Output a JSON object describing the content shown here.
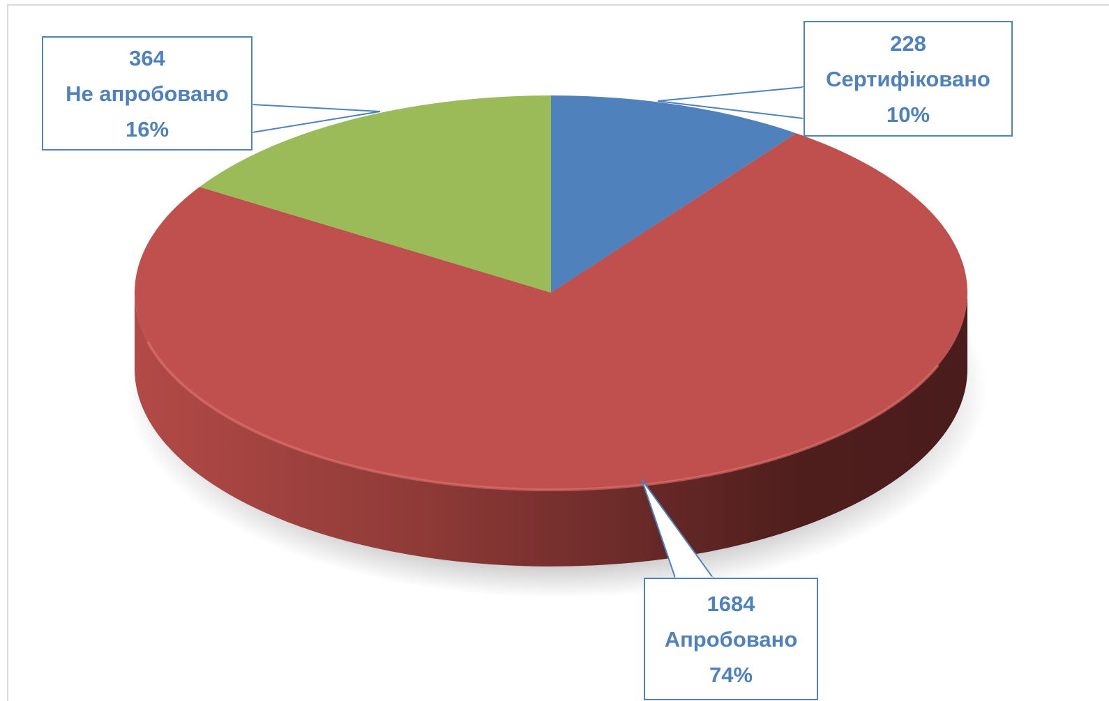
{
  "chart_data": {
    "type": "pie",
    "title": "",
    "slices": [
      {
        "label": "Сертифіковано",
        "value": 228,
        "percent_label": "10%",
        "color": "#4f81bd"
      },
      {
        "label": "Апробовано",
        "value": 1684,
        "percent_label": "74%",
        "color": "#c0504d"
      },
      {
        "label": "Не апробовано",
        "value": 364,
        "percent_label": "16%",
        "color": "#9bbb59"
      }
    ],
    "style": "3d",
    "legend": "none",
    "data_labels": "callout boxes with value, category name and percentage",
    "label_color": "#4f81bd"
  }
}
